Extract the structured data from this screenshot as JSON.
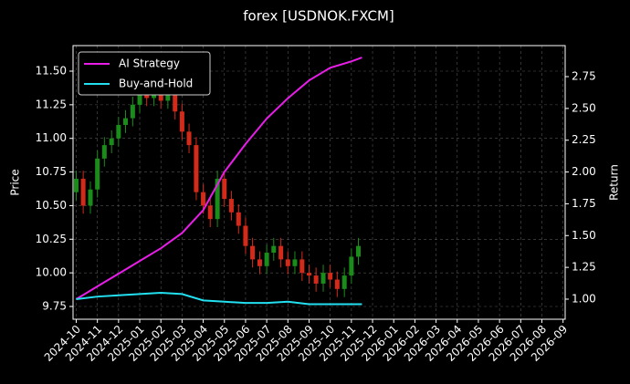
{
  "chart_data": {
    "type": "candlestick",
    "title": "forex [USDNOK.FXCM]",
    "ylabel": "Price",
    "y2label": "Return",
    "x": [
      0,
      0.33,
      0.67,
      1,
      1.33,
      1.67,
      2,
      2.33,
      2.67,
      3,
      3.33,
      3.67,
      4,
      4.33,
      4.67,
      5,
      5.33,
      5.67,
      6,
      6.33,
      6.67,
      7,
      7.33,
      7.67,
      8,
      8.33,
      8.67,
      9,
      9.33,
      9.67,
      10,
      10.33,
      10.67,
      11,
      11.33,
      11.67,
      12,
      12.33,
      12.67,
      13,
      13.33
    ],
    "open": [
      10.6,
      10.7,
      10.5,
      10.62,
      10.85,
      10.95,
      11.0,
      11.1,
      11.15,
      11.25,
      11.35,
      11.3,
      11.38,
      11.28,
      11.32,
      11.2,
      11.05,
      10.95,
      10.6,
      10.5,
      10.4,
      10.7,
      10.55,
      10.45,
      10.35,
      10.2,
      10.1,
      10.05,
      10.15,
      10.2,
      10.1,
      10.05,
      10.1,
      10.0,
      9.98,
      9.92,
      10.0,
      9.95,
      9.88,
      9.98,
      10.12
    ],
    "high": [
      10.76,
      10.76,
      10.68,
      10.91,
      11.01,
      11.06,
      11.16,
      11.21,
      11.31,
      11.41,
      11.41,
      11.44,
      11.44,
      11.38,
      11.38,
      11.26,
      11.11,
      11.01,
      10.66,
      10.56,
      10.76,
      10.76,
      10.61,
      10.51,
      10.41,
      10.26,
      10.16,
      10.21,
      10.26,
      10.26,
      10.16,
      10.16,
      10.16,
      10.06,
      10.04,
      10.06,
      10.06,
      10.01,
      10.04,
      10.18,
      10.26
    ],
    "low": [
      10.54,
      10.44,
      10.44,
      10.56,
      10.79,
      10.89,
      10.94,
      11.04,
      11.09,
      11.19,
      11.24,
      11.24,
      11.22,
      11.22,
      11.14,
      10.99,
      10.89,
      10.54,
      10.44,
      10.34,
      10.34,
      10.49,
      10.39,
      10.29,
      10.14,
      10.04,
      9.99,
      9.99,
      10.09,
      10.04,
      9.99,
      9.99,
      9.94,
      9.92,
      9.86,
      9.86,
      9.89,
      9.82,
      9.82,
      9.92,
      10.06
    ],
    "close": [
      10.7,
      10.5,
      10.62,
      10.85,
      10.95,
      11.0,
      11.1,
      11.15,
      11.25,
      11.35,
      11.3,
      11.38,
      11.28,
      11.32,
      11.2,
      11.05,
      10.95,
      10.6,
      10.5,
      10.4,
      10.7,
      10.55,
      10.45,
      10.35,
      10.2,
      10.1,
      10.05,
      10.15,
      10.2,
      10.1,
      10.05,
      10.1,
      10.0,
      9.98,
      9.92,
      10.0,
      9.95,
      9.88,
      9.98,
      10.12,
      10.2
    ],
    "up_color": "#1a8c1a",
    "down_color": "#d42a1a",
    "series": [
      {
        "name": "AI Strategy",
        "color": "#e81ee8",
        "axis": "y2",
        "x": [
          0,
          1,
          2,
          3,
          4,
          5,
          6,
          7,
          8,
          9,
          10,
          11,
          12,
          13,
          13.5
        ],
        "values": [
          1.0,
          1.1,
          1.2,
          1.3,
          1.4,
          1.52,
          1.7,
          2.0,
          2.22,
          2.42,
          2.58,
          2.72,
          2.82,
          2.87,
          2.9
        ]
      },
      {
        "name": "Buy-and-Hold",
        "color": "#22e0f0",
        "axis": "y2",
        "x": [
          0,
          1,
          2,
          3,
          4,
          5,
          6,
          7,
          8,
          9,
          10,
          11,
          12,
          13,
          13.5
        ],
        "values": [
          1.0,
          1.02,
          1.03,
          1.04,
          1.05,
          1.04,
          0.99,
          0.98,
          0.97,
          0.97,
          0.98,
          0.96,
          0.96,
          0.96,
          0.96
        ]
      }
    ],
    "xlim": [
      -0.15,
      23.1
    ],
    "xticks": [
      {
        "value": 0,
        "label": "2024-10"
      },
      {
        "value": 1,
        "label": "2024-11"
      },
      {
        "value": 2,
        "label": "2024-12"
      },
      {
        "value": 3,
        "label": "2025-01"
      },
      {
        "value": 4,
        "label": "2025-02"
      },
      {
        "value": 5,
        "label": "2025-03"
      },
      {
        "value": 6,
        "label": "2025-04"
      },
      {
        "value": 7,
        "label": "2025-05"
      },
      {
        "value": 8,
        "label": "2025-06"
      },
      {
        "value": 9,
        "label": "2025-07"
      },
      {
        "value": 10,
        "label": "2025-08"
      },
      {
        "value": 11,
        "label": "2025-09"
      },
      {
        "value": 12,
        "label": "2025-10"
      },
      {
        "value": 13,
        "label": "2025-11"
      },
      {
        "value": 14,
        "label": "2025-12"
      },
      {
        "value": 15,
        "label": "2026-01"
      },
      {
        "value": 16,
        "label": "2026-02"
      },
      {
        "value": 17,
        "label": "2026-03"
      },
      {
        "value": 18,
        "label": "2026-04"
      },
      {
        "value": 19,
        "label": "2026-05"
      },
      {
        "value": 20,
        "label": "2026-06"
      },
      {
        "value": 21,
        "label": "2026-07"
      },
      {
        "value": 22,
        "label": "2026-08"
      },
      {
        "value": 23,
        "label": "2026-09"
      }
    ],
    "ylim": [
      9.655,
      11.69
    ],
    "yticks": [
      {
        "value": 9.75,
        "label": "9.75"
      },
      {
        "value": 10,
        "label": "10.00"
      },
      {
        "value": 10.25,
        "label": "10.25"
      },
      {
        "value": 10.5,
        "label": "10.50"
      },
      {
        "value": 10.75,
        "label": "10.75"
      },
      {
        "value": 11,
        "label": "11.00"
      },
      {
        "value": 11.25,
        "label": "11.25"
      },
      {
        "value": 11.5,
        "label": "11.50"
      }
    ],
    "y2lim": [
      0.842,
      2.994
    ],
    "y2ticks": [
      {
        "value": 1,
        "label": "1.00"
      },
      {
        "value": 1.25,
        "label": "1.25"
      },
      {
        "value": 1.5,
        "label": "1.50"
      },
      {
        "value": 1.75,
        "label": "1.75"
      },
      {
        "value": 2,
        "label": "2.00"
      },
      {
        "value": 2.25,
        "label": "2.25"
      },
      {
        "value": 2.5,
        "label": "2.50"
      },
      {
        "value": 2.75,
        "label": "2.75"
      }
    ],
    "grid": true,
    "legend": "upper left"
  }
}
